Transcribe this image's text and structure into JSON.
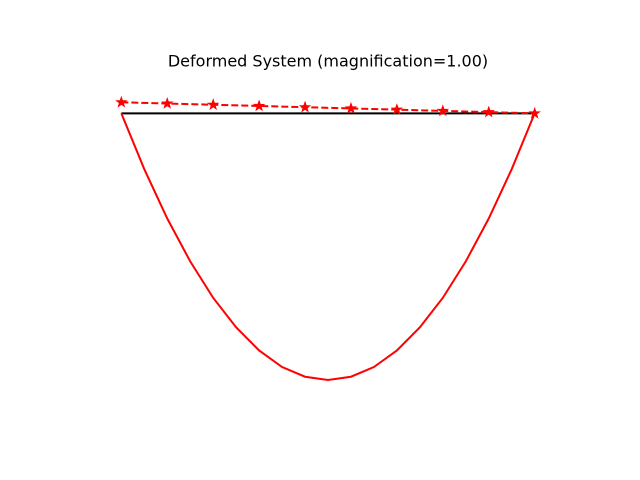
{
  "chart_data": {
    "type": "line",
    "title": "Deformed System (magnification=1.00)",
    "xlim": [
      -0.9,
      9.9
    ],
    "ylim": [
      -6.8,
      1.2
    ],
    "grid": false,
    "axis": "off",
    "series": [
      {
        "color": "#000000",
        "style": "solid",
        "marker": "none",
        "x": [
          0,
          9
        ],
        "values": [
          0,
          0
        ]
      },
      {
        "color": "#ff0000",
        "style": "solid",
        "marker": "none",
        "x": [
          0,
          0.5,
          1,
          1.5,
          2,
          2.5,
          3,
          3.5,
          4,
          4.5,
          5,
          5.5,
          6,
          6.5,
          7,
          7.5,
          8,
          8.5,
          9
        ],
        "values": [
          0,
          -1.21,
          -2.28,
          -3.21,
          -4.0,
          -4.64,
          -5.14,
          -5.5,
          -5.71,
          -5.78,
          -5.71,
          -5.5,
          -5.14,
          -4.64,
          -4.0,
          -3.21,
          -2.28,
          -1.21,
          0
        ]
      },
      {
        "color": "#ff0000",
        "style": "dashed",
        "marker": "star",
        "x": [
          0,
          1,
          2,
          3,
          4,
          5,
          6,
          7,
          8,
          9
        ],
        "values": [
          0.24,
          0.213,
          0.187,
          0.16,
          0.133,
          0.107,
          0.08,
          0.053,
          0.027,
          0
        ]
      }
    ]
  }
}
